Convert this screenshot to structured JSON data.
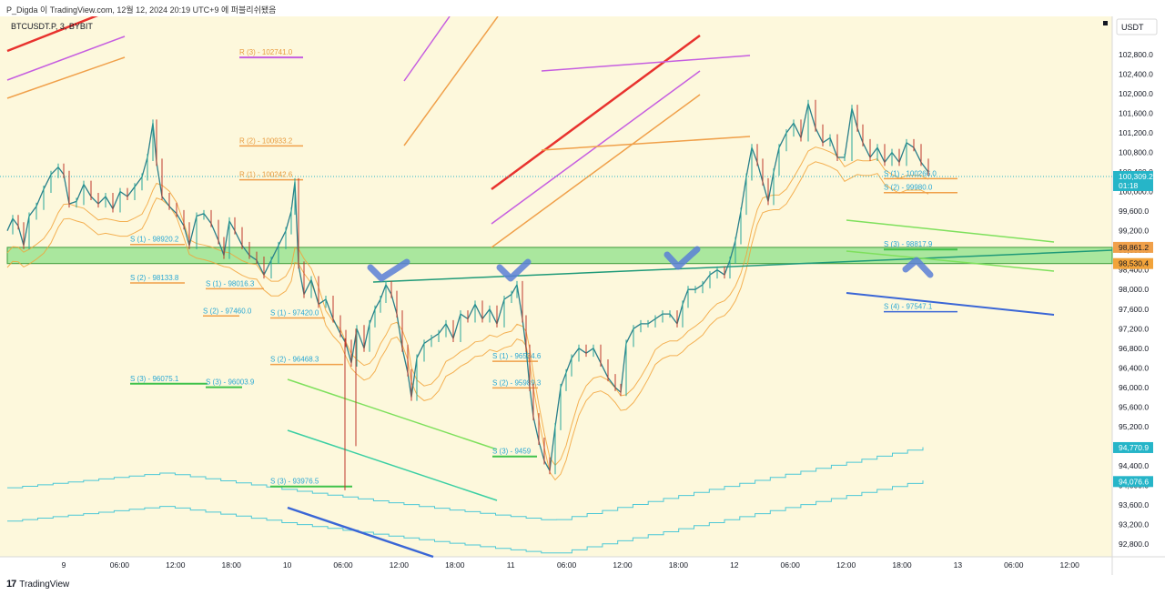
{
  "header": {
    "caption": "P_Digda 이 TradingView.com, 12월 12, 2024 20:19 UTC+9 에 퍼블리쉬됐음"
  },
  "footer": {
    "logo_mark": "17",
    "logo_text": "TradingView"
  },
  "colors": {
    "background": "#fdf8dc",
    "price_line": "#2a7f8a",
    "support_label": "#2aa8d4",
    "resistance_label": "#e89a3c",
    "green_zone": "#8ee28a",
    "red_trend": "#e8322e",
    "purple_trend": "#c65ee0",
    "orange_trend": "#f0a04a",
    "green_trend": "#7ee05c",
    "blue_trend": "#3a66d6",
    "teal_trend": "#3bcfa3",
    "envelope_orange": "#f2a33a",
    "channel_cyan": "#4dc8d6"
  },
  "chart_data": {
    "type": "line",
    "title": "BTCUSDT.P, 3, BYBIT",
    "currency": "USDT",
    "x_ticks": [
      "9",
      "06:00",
      "12:00",
      "18:00",
      "10",
      "06:00",
      "12:00",
      "18:00",
      "11",
      "06:00",
      "12:00",
      "18:00",
      "12",
      "06:00",
      "12:00",
      "18:00",
      "13",
      "06:00",
      "12:00"
    ],
    "y_ticks": [
      "102,800.0",
      "102,400.0",
      "102,000.0",
      "101,600.0",
      "101,200.0",
      "100,800.0",
      "100,400.0",
      "100,000.0",
      "99,600.0",
      "99,200.0",
      "98,800.0",
      "98,400.0",
      "98,000.0",
      "97,600.0",
      "97,200.0",
      "96,800.0",
      "96,400.0",
      "96,000.0",
      "95,600.0",
      "95,200.0",
      "94,800.0",
      "94,400.0",
      "94,000.0",
      "93,600.0",
      "93,200.0",
      "92,800.0"
    ],
    "ylim": [
      92600,
      103400
    ],
    "current_price": {
      "label": "100,309.2",
      "countdown": "01:18",
      "value": 100309.2
    },
    "price_badges": [
      {
        "label": "98,861.2",
        "value": 98861.2,
        "color": "#f0a04a"
      },
      {
        "label": "98,530.4",
        "value": 98530.4,
        "color": "#f2a33a"
      },
      {
        "label": "94,770.9",
        "value": 94770.9,
        "color": "#26b5c8"
      },
      {
        "label": "94,076.6",
        "value": 94076.6,
        "color": "#26b5c8"
      }
    ],
    "levels": [
      {
        "label": "R (3) - 102741.0",
        "value": 102741.0,
        "kind": "R"
      },
      {
        "label": "R (2) - 100933.2",
        "value": 100933.2,
        "kind": "R"
      },
      {
        "label": "R (1) - 100242.6",
        "value": 100242.6,
        "kind": "R"
      },
      {
        "label": "S (1) - 98920.2",
        "value": 98920.2,
        "kind": "S"
      },
      {
        "label": "S (2) - 98133.8",
        "value": 98133.8,
        "kind": "S"
      },
      {
        "label": "S (1) - 98016.3",
        "value": 98016.3,
        "kind": "S"
      },
      {
        "label": "S (2) - 97460.0",
        "value": 97460.0,
        "kind": "S"
      },
      {
        "label": "S (1) - 97420.0",
        "value": 97420.0,
        "kind": "S"
      },
      {
        "label": "S (2) - 96468.3",
        "value": 96468.3,
        "kind": "S"
      },
      {
        "label": "S (3) - 96075.1",
        "value": 96075.1,
        "kind": "S"
      },
      {
        "label": "S (3) - 96003.9",
        "value": 96003.9,
        "kind": "S"
      },
      {
        "label": "S (3) - 93976.5",
        "value": 93976.5,
        "kind": "S"
      },
      {
        "label": "S (1) - 96534.6",
        "value": 96534.6,
        "kind": "S"
      },
      {
        "label": "S (2) - 95989.3",
        "value": 95989.3,
        "kind": "S"
      },
      {
        "label": "S (3) - 9459",
        "value": 94590,
        "kind": "S"
      },
      {
        "label": "S (1) - 100266.0",
        "value": 100266.0,
        "kind": "S"
      },
      {
        "label": "S (2) - 99980.0",
        "value": 99980.0,
        "kind": "S"
      },
      {
        "label": "S (3) - 98817.9",
        "value": 98817.9,
        "kind": "S"
      },
      {
        "label": "S (4) - 97547.1",
        "value": 97547.1,
        "kind": "S"
      }
    ],
    "support_zone": [
      98530.4,
      98861.2
    ],
    "price_path": [
      {
        "x": 0,
        "y": 99200
      },
      {
        "x": 6,
        "y": 99450
      },
      {
        "x": 12,
        "y": 99300
      },
      {
        "x": 18,
        "y": 98900
      },
      {
        "x": 24,
        "y": 99500
      },
      {
        "x": 32,
        "y": 99700
      },
      {
        "x": 40,
        "y": 100050
      },
      {
        "x": 48,
        "y": 100350
      },
      {
        "x": 56,
        "y": 100500
      },
      {
        "x": 62,
        "y": 100350
      },
      {
        "x": 68,
        "y": 99750
      },
      {
        "x": 76,
        "y": 99800
      },
      {
        "x": 84,
        "y": 100150
      },
      {
        "x": 92,
        "y": 99900
      },
      {
        "x": 100,
        "y": 99750
      },
      {
        "x": 108,
        "y": 99900
      },
      {
        "x": 116,
        "y": 99650
      },
      {
        "x": 124,
        "y": 100000
      },
      {
        "x": 132,
        "y": 99900
      },
      {
        "x": 140,
        "y": 100100
      },
      {
        "x": 148,
        "y": 100300
      },
      {
        "x": 154,
        "y": 100700
      },
      {
        "x": 160,
        "y": 101400
      },
      {
        "x": 164,
        "y": 100600
      },
      {
        "x": 170,
        "y": 99900
      },
      {
        "x": 178,
        "y": 99700
      },
      {
        "x": 186,
        "y": 99550
      },
      {
        "x": 194,
        "y": 99300
      },
      {
        "x": 200,
        "y": 98900
      },
      {
        "x": 208,
        "y": 99500
      },
      {
        "x": 216,
        "y": 99550
      },
      {
        "x": 224,
        "y": 99350
      },
      {
        "x": 232,
        "y": 99000
      },
      {
        "x": 238,
        "y": 98700
      },
      {
        "x": 244,
        "y": 99400
      },
      {
        "x": 250,
        "y": 99200
      },
      {
        "x": 258,
        "y": 98900
      },
      {
        "x": 266,
        "y": 98700
      },
      {
        "x": 274,
        "y": 98600
      },
      {
        "x": 282,
        "y": 98300
      },
      {
        "x": 290,
        "y": 98600
      },
      {
        "x": 298,
        "y": 98900
      },
      {
        "x": 306,
        "y": 99200
      },
      {
        "x": 312,
        "y": 99600
      },
      {
        "x": 316,
        "y": 100200
      },
      {
        "x": 320,
        "y": 98500
      },
      {
        "x": 326,
        "y": 97900
      },
      {
        "x": 334,
        "y": 98200
      },
      {
        "x": 342,
        "y": 97700
      },
      {
        "x": 350,
        "y": 97800
      },
      {
        "x": 358,
        "y": 97400
      },
      {
        "x": 366,
        "y": 97100
      },
      {
        "x": 372,
        "y": 96900
      },
      {
        "x": 378,
        "y": 96500
      },
      {
        "x": 384,
        "y": 97200
      },
      {
        "x": 392,
        "y": 96800
      },
      {
        "x": 398,
        "y": 97300
      },
      {
        "x": 404,
        "y": 97600
      },
      {
        "x": 410,
        "y": 97800
      },
      {
        "x": 416,
        "y": 98100
      },
      {
        "x": 422,
        "y": 97900
      },
      {
        "x": 428,
        "y": 97500
      },
      {
        "x": 434,
        "y": 96800
      },
      {
        "x": 440,
        "y": 96300
      },
      {
        "x": 444,
        "y": 95800
      },
      {
        "x": 450,
        "y": 96600
      },
      {
        "x": 458,
        "y": 96900
      },
      {
        "x": 466,
        "y": 97000
      },
      {
        "x": 474,
        "y": 97100
      },
      {
        "x": 482,
        "y": 97300
      },
      {
        "x": 490,
        "y": 97000
      },
      {
        "x": 498,
        "y": 97500
      },
      {
        "x": 506,
        "y": 97400
      },
      {
        "x": 514,
        "y": 97700
      },
      {
        "x": 522,
        "y": 97400
      },
      {
        "x": 530,
        "y": 97600
      },
      {
        "x": 538,
        "y": 97300
      },
      {
        "x": 546,
        "y": 97800
      },
      {
        "x": 554,
        "y": 97900
      },
      {
        "x": 560,
        "y": 98100
      },
      {
        "x": 566,
        "y": 97400
      },
      {
        "x": 570,
        "y": 96800
      },
      {
        "x": 574,
        "y": 96000
      },
      {
        "x": 578,
        "y": 95400
      },
      {
        "x": 584,
        "y": 94900
      },
      {
        "x": 590,
        "y": 94500
      },
      {
        "x": 596,
        "y": 94300
      },
      {
        "x": 602,
        "y": 95200
      },
      {
        "x": 608,
        "y": 96000
      },
      {
        "x": 614,
        "y": 96300
      },
      {
        "x": 620,
        "y": 96600
      },
      {
        "x": 628,
        "y": 96800
      },
      {
        "x": 636,
        "y": 96700
      },
      {
        "x": 644,
        "y": 96800
      },
      {
        "x": 652,
        "y": 96500
      },
      {
        "x": 660,
        "y": 96200
      },
      {
        "x": 668,
        "y": 96000
      },
      {
        "x": 674,
        "y": 95900
      },
      {
        "x": 680,
        "y": 96900
      },
      {
        "x": 688,
        "y": 97200
      },
      {
        "x": 696,
        "y": 97300
      },
      {
        "x": 704,
        "y": 97300
      },
      {
        "x": 712,
        "y": 97400
      },
      {
        "x": 720,
        "y": 97500
      },
      {
        "x": 728,
        "y": 97500
      },
      {
        "x": 736,
        "y": 97300
      },
      {
        "x": 742,
        "y": 97700
      },
      {
        "x": 748,
        "y": 98000
      },
      {
        "x": 756,
        "y": 98000
      },
      {
        "x": 764,
        "y": 98100
      },
      {
        "x": 772,
        "y": 98300
      },
      {
        "x": 780,
        "y": 98400
      },
      {
        "x": 788,
        "y": 98300
      },
      {
        "x": 794,
        "y": 98600
      },
      {
        "x": 800,
        "y": 99000
      },
      {
        "x": 806,
        "y": 99600
      },
      {
        "x": 812,
        "y": 100300
      },
      {
        "x": 818,
        "y": 100900
      },
      {
        "x": 824,
        "y": 100600
      },
      {
        "x": 830,
        "y": 100200
      },
      {
        "x": 836,
        "y": 99800
      },
      {
        "x": 842,
        "y": 100400
      },
      {
        "x": 848,
        "y": 100900
      },
      {
        "x": 856,
        "y": 101200
      },
      {
        "x": 864,
        "y": 101400
      },
      {
        "x": 872,
        "y": 101100
      },
      {
        "x": 880,
        "y": 101800
      },
      {
        "x": 888,
        "y": 101300
      },
      {
        "x": 896,
        "y": 101000
      },
      {
        "x": 904,
        "y": 101100
      },
      {
        "x": 912,
        "y": 100700
      },
      {
        "x": 920,
        "y": 100700
      },
      {
        "x": 928,
        "y": 101700
      },
      {
        "x": 934,
        "y": 101300
      },
      {
        "x": 940,
        "y": 101000
      },
      {
        "x": 948,
        "y": 100700
      },
      {
        "x": 956,
        "y": 100900
      },
      {
        "x": 964,
        "y": 100600
      },
      {
        "x": 972,
        "y": 100800
      },
      {
        "x": 980,
        "y": 100600
      },
      {
        "x": 988,
        "y": 101000
      },
      {
        "x": 996,
        "y": 100900
      },
      {
        "x": 1004,
        "y": 100600
      },
      {
        "x": 1012,
        "y": 100400
      }
    ]
  }
}
